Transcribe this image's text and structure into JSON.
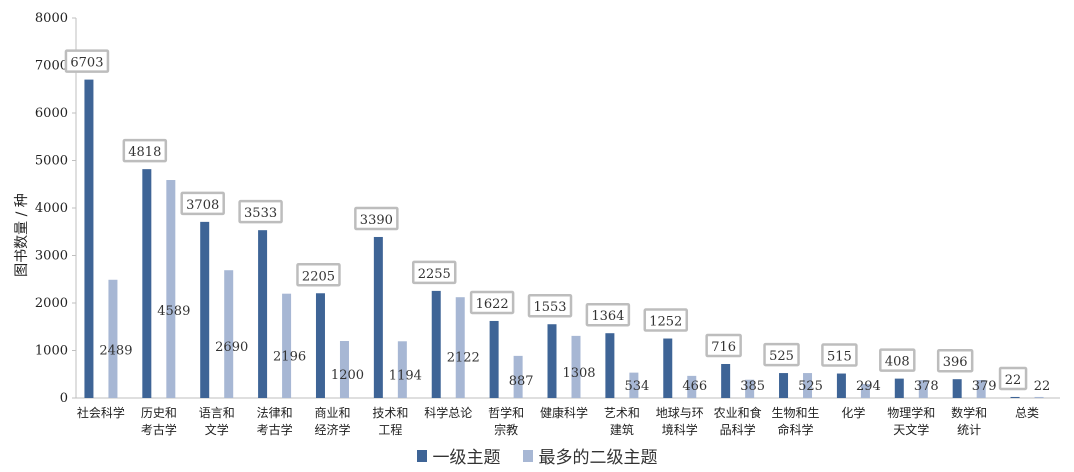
{
  "chart_data": {
    "type": "bar",
    "ylabel": "图书数量 / 种",
    "ylim": [
      0,
      8000
    ],
    "yticks": [
      0,
      1000,
      2000,
      3000,
      4000,
      5000,
      6000,
      7000,
      8000
    ],
    "grid": false,
    "legend_position": "bottom",
    "categories": [
      "社会科学",
      "历史和\n考古学",
      "语言和\n文学",
      "法律和\n考古学",
      "商业和\n经济学",
      "技术和\n工程",
      "科学总论",
      "哲学和\n宗教",
      "健康科学",
      "艺术和\n建筑",
      "地球与环\n境科学",
      "农业和食\n品科学",
      "生物和生\n命科学",
      "化学",
      "物理学和\n天文学",
      "数学和\n统计",
      "总类"
    ],
    "series": [
      {
        "name": "一级主题",
        "color": "#3e6496",
        "values": [
          6703,
          4818,
          3708,
          3533,
          2205,
          3390,
          2255,
          1622,
          1553,
          1364,
          1252,
          716,
          525,
          515,
          408,
          396,
          22
        ]
      },
      {
        "name": "最多的二级主题",
        "color": "#a7b7d4",
        "values": [
          2489,
          4589,
          2690,
          2196,
          1200,
          1194,
          2122,
          887,
          1308,
          534,
          466,
          385,
          525,
          294,
          378,
          379,
          22
        ]
      }
    ]
  }
}
